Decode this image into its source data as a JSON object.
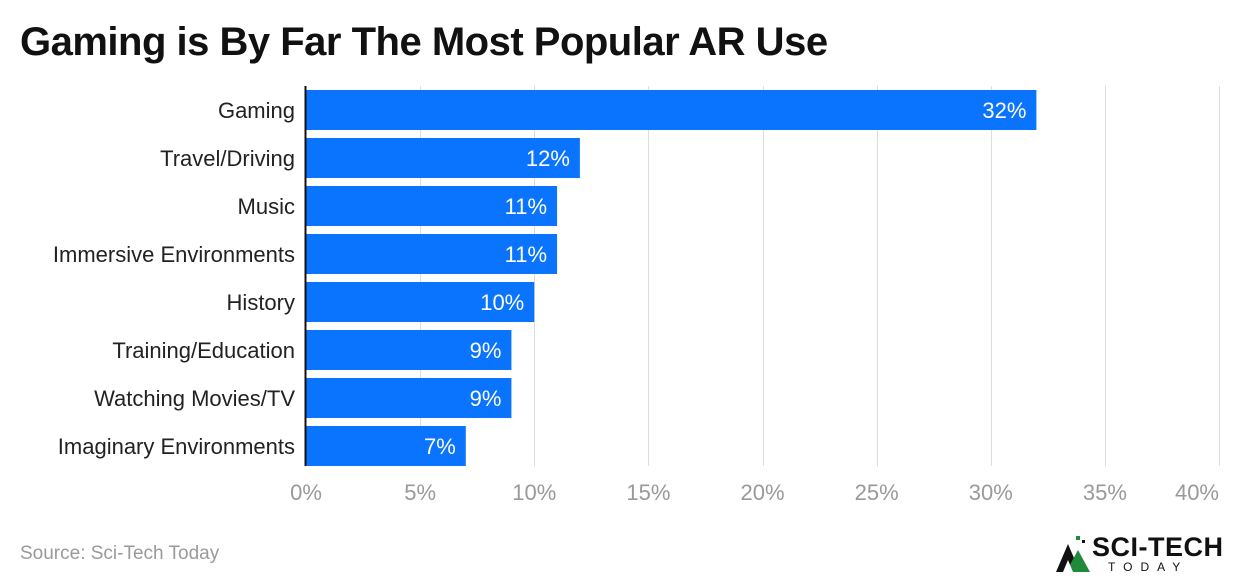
{
  "title": "Gaming is By Far The Most Popular AR Use",
  "source": "Source: Sci-Tech Today",
  "logo": {
    "main": "SCI-TECH",
    "sub": "TODAY"
  },
  "colors": {
    "bar": "#0a74ff",
    "grid": "#dddddd",
    "axis": "#111111",
    "tick": "#999999",
    "label": "#222222"
  },
  "chart_data": {
    "type": "bar",
    "orientation": "horizontal",
    "categories": [
      "Gaming",
      "Travel/Driving",
      "Music",
      "Immersive Environments",
      "History",
      "Training/Education",
      "Watching Movies/TV",
      "Imaginary Environments"
    ],
    "values": [
      32,
      12,
      11,
      11,
      10,
      9,
      9,
      7
    ],
    "data_labels": [
      "32%",
      "12%",
      "11%",
      "11%",
      "10%",
      "9%",
      "9%",
      "7%"
    ],
    "xlim": [
      0,
      40
    ],
    "xticks": [
      0,
      5,
      10,
      15,
      20,
      25,
      30,
      35,
      40
    ],
    "xtick_labels": [
      "0%",
      "5%",
      "10%",
      "15%",
      "20%",
      "25%",
      "30%",
      "35%",
      "40%"
    ],
    "grid": true,
    "xlabel": "",
    "ylabel": ""
  }
}
